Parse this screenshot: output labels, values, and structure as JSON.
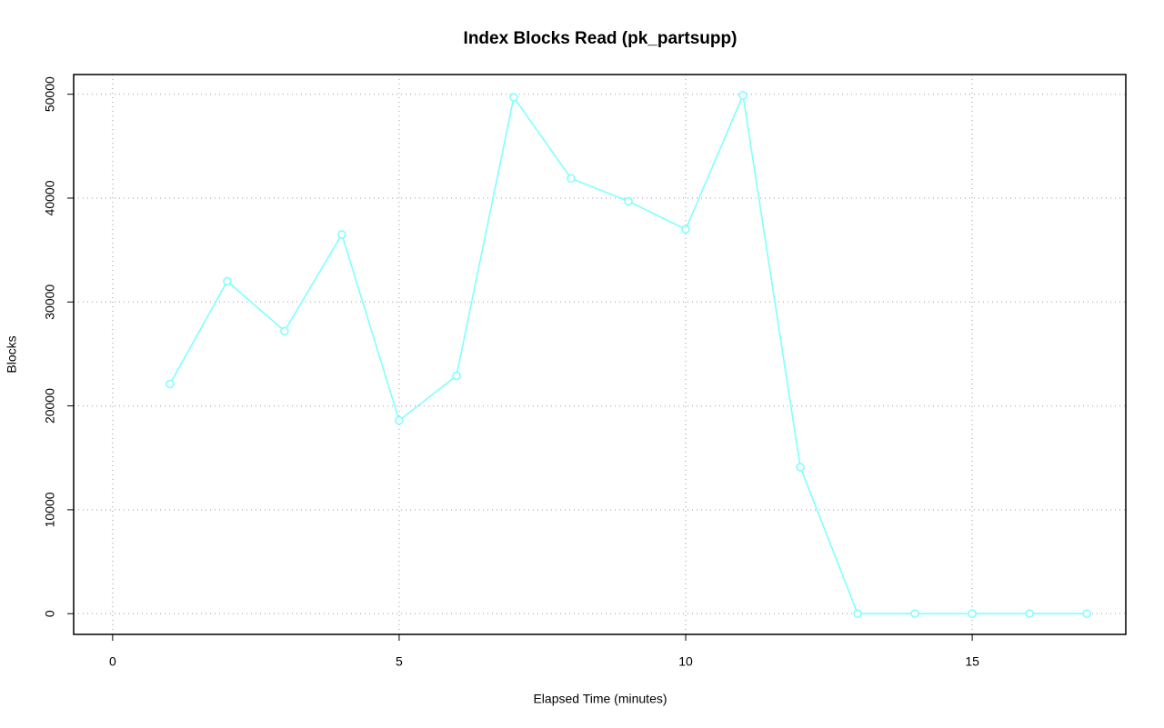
{
  "chart_data": {
    "type": "line",
    "title": "Index Blocks Read (pk_partsupp)",
    "x_label": "Elapsed Time (minutes)",
    "y_label": "Blocks",
    "x": [
      1,
      2,
      3,
      4,
      5,
      6,
      7,
      8,
      9,
      10,
      11,
      12,
      13,
      14,
      15,
      16,
      17
    ],
    "values": [
      22100,
      32000,
      27200,
      36500,
      18600,
      22900,
      49700,
      41900,
      39700,
      37000,
      49900,
      14100,
      0,
      0,
      0,
      0,
      0
    ],
    "color": "#80ffff",
    "xlim": [
      -0.68,
      17.68
    ],
    "xticks": [
      0,
      5,
      10,
      15
    ],
    "ylim": [
      -1996,
      51896
    ],
    "yticks": [
      0,
      10000,
      20000,
      30000,
      40000,
      50000
    ],
    "grid": true
  }
}
